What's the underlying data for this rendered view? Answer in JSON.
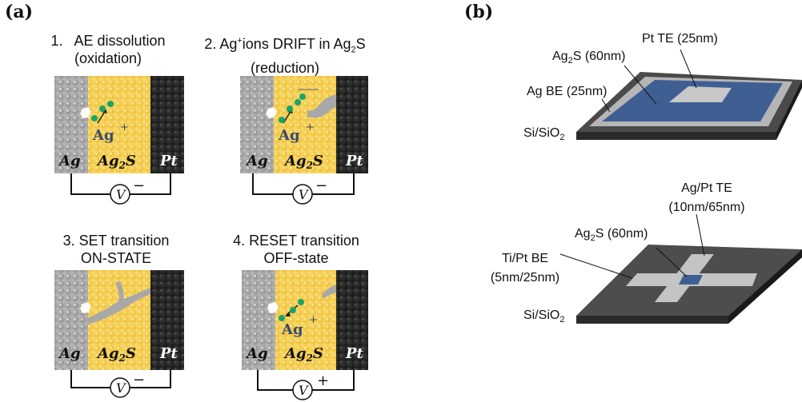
{
  "panel_a": {
    "label": "(a)",
    "steps": [
      {
        "line1": "1.   AE dissolution",
        "line2": "(oxidation)",
        "ion": "Ag",
        "ion_sup": "+",
        "bias": "−"
      },
      {
        "line1_pre": "2. Ag",
        "line1_sup": "+",
        "line1_post": "ions DRIFT in Ag",
        "line1_sub": "2",
        "line1_end": "S",
        "line2": "(reduction)",
        "ion": "Ag",
        "ion_sup": "+",
        "bias": "−"
      },
      {
        "line1": "3. SET transition",
        "line2": "ON-STATE",
        "bias": "−"
      },
      {
        "line1": "4. RESET transition",
        "line2": "OFF-state",
        "ion": "Ag",
        "ion_sup": "+",
        "bias": "+"
      }
    ],
    "layer_labels": {
      "left": "Ag",
      "mid_base": "Ag",
      "mid_sub": "2",
      "mid_end": "S",
      "right": "Pt"
    },
    "meter_symbol": "V"
  },
  "panel_b": {
    "label": "(b)",
    "device1": {
      "te": "Pt TE (25nm)",
      "ag2s_base": "Ag",
      "ag2s_sub": "2",
      "ag2s_end": "S (60nm)",
      "be": "Ag BE (25nm)",
      "sub_base": "Si/SiO",
      "sub_sub": "2"
    },
    "device2": {
      "te_line1": "Ag/Pt TE",
      "te_line2": "(10nm/65nm)",
      "ag2s_base": "Ag",
      "ag2s_sub": "2",
      "ag2s_end": "S (60nm)",
      "be_line1": "Ti/Pt BE",
      "be_line2": "(5nm/25nm)",
      "sub_base": "Si/SiO",
      "sub_sub": "2"
    }
  },
  "colors": {
    "ag_grey": "#a8a8a8",
    "ag2s_yellow": "#f2c94c",
    "pt_black": "#262626",
    "ion_green": "#1aa36b",
    "film_blue": "#3f5f93"
  }
}
